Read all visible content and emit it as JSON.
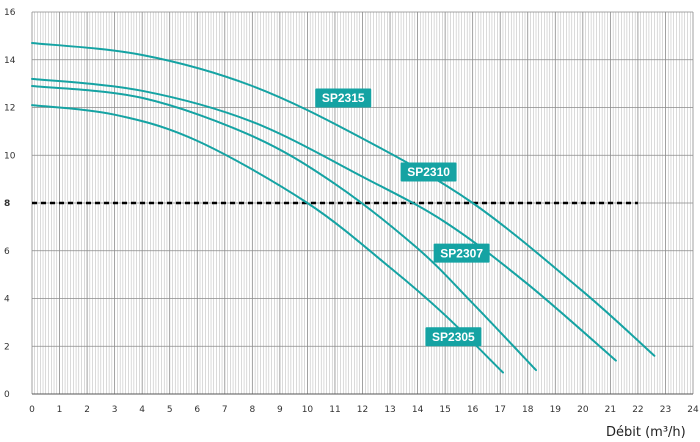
{
  "chart_data": {
    "type": "line",
    "title": "",
    "xlabel": "Débit (m³/h)",
    "ylabel": "",
    "xlim": [
      0,
      24
    ],
    "ylim": [
      0,
      16
    ],
    "x_ticks": [
      0,
      1,
      2,
      3,
      4,
      5,
      6,
      7,
      8,
      9,
      10,
      11,
      12,
      13,
      14,
      15,
      16,
      17,
      18,
      19,
      20,
      21,
      22,
      23,
      24
    ],
    "y_ticks": [
      0,
      2,
      4,
      6,
      8,
      10,
      12,
      14,
      16
    ],
    "grid": true,
    "reference_line": {
      "y": 8,
      "style": "dashed",
      "color": "#000000",
      "x_range": [
        0,
        22
      ]
    },
    "line_color": "#15a3a3",
    "label_bg_color": "#15a3a3",
    "series": [
      {
        "name": "SP2315",
        "x": [
          0,
          4,
          8,
          12,
          16,
          20,
          22.6
        ],
        "y": [
          14.7,
          14.2,
          12.9,
          10.7,
          8.0,
          4.3,
          1.6
        ]
      },
      {
        "name": "SP2310",
        "x": [
          0,
          4,
          8,
          12,
          15,
          18,
          21.2
        ],
        "y": [
          13.2,
          12.7,
          11.4,
          9.1,
          7.2,
          4.6,
          1.4
        ]
      },
      {
        "name": "SP2307",
        "x": [
          0,
          4,
          8,
          11,
          14,
          16,
          18.3
        ],
        "y": [
          12.9,
          12.4,
          10.8,
          8.8,
          6.1,
          3.8,
          1.0
        ]
      },
      {
        "name": "SP2305",
        "x": [
          0,
          3,
          6,
          10,
          13,
          15,
          17.1
        ],
        "y": [
          12.1,
          11.7,
          10.6,
          8.0,
          5.3,
          3.3,
          0.9
        ]
      }
    ],
    "series_labels": [
      {
        "text": "SP2315",
        "at": [
          11.3,
          12.4
        ]
      },
      {
        "text": "SP2310",
        "at": [
          14.4,
          9.3
        ]
      },
      {
        "text": "SP2307",
        "at": [
          15.6,
          5.9
        ]
      },
      {
        "text": "SP2305",
        "at": [
          15.3,
          2.4
        ]
      }
    ]
  }
}
